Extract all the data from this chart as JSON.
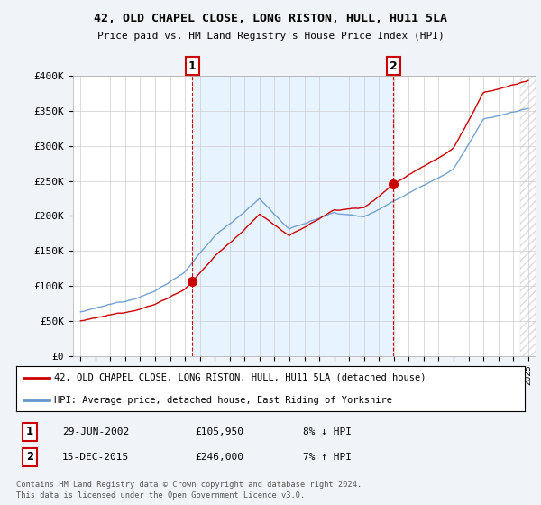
{
  "title": "42, OLD CHAPEL CLOSE, LONG RISTON, HULL, HU11 5LA",
  "subtitle": "Price paid vs. HM Land Registry's House Price Index (HPI)",
  "ylim": [
    0,
    400000
  ],
  "yticks": [
    0,
    50000,
    100000,
    150000,
    200000,
    250000,
    300000,
    350000,
    400000
  ],
  "ytick_labels": [
    "£0",
    "£50K",
    "£100K",
    "£150K",
    "£200K",
    "£250K",
    "£300K",
    "£350K",
    "£400K"
  ],
  "transaction1_date": 2002.49,
  "transaction1_value": 105950,
  "transaction1_label": "1",
  "transaction2_date": 2015.96,
  "transaction2_value": 246000,
  "transaction2_label": "2",
  "legend_line1": "42, OLD CHAPEL CLOSE, LONG RISTON, HULL, HU11 5LA (detached house)",
  "legend_line2": "HPI: Average price, detached house, East Riding of Yorkshire",
  "footer_line1": "Contains HM Land Registry data © Crown copyright and database right 2024.",
  "footer_line2": "This data is licensed under the Open Government Licence v3.0.",
  "price_line_color": "#cc0000",
  "hpi_line_color": "#6699cc",
  "background_color": "#f0f4f8",
  "plot_bg_color": "#ffffff",
  "shaded_bg_color": "#ddeeff",
  "grid_color": "#cccccc",
  "transaction_color": "#cc0000",
  "t1_date_str": "29-JUN-2002",
  "t1_price_str": "£105,950",
  "t1_hpi_str": "8% ↓ HPI",
  "t2_date_str": "15-DEC-2015",
  "t2_price_str": "£246,000",
  "t2_hpi_str": "7% ↑ HPI"
}
